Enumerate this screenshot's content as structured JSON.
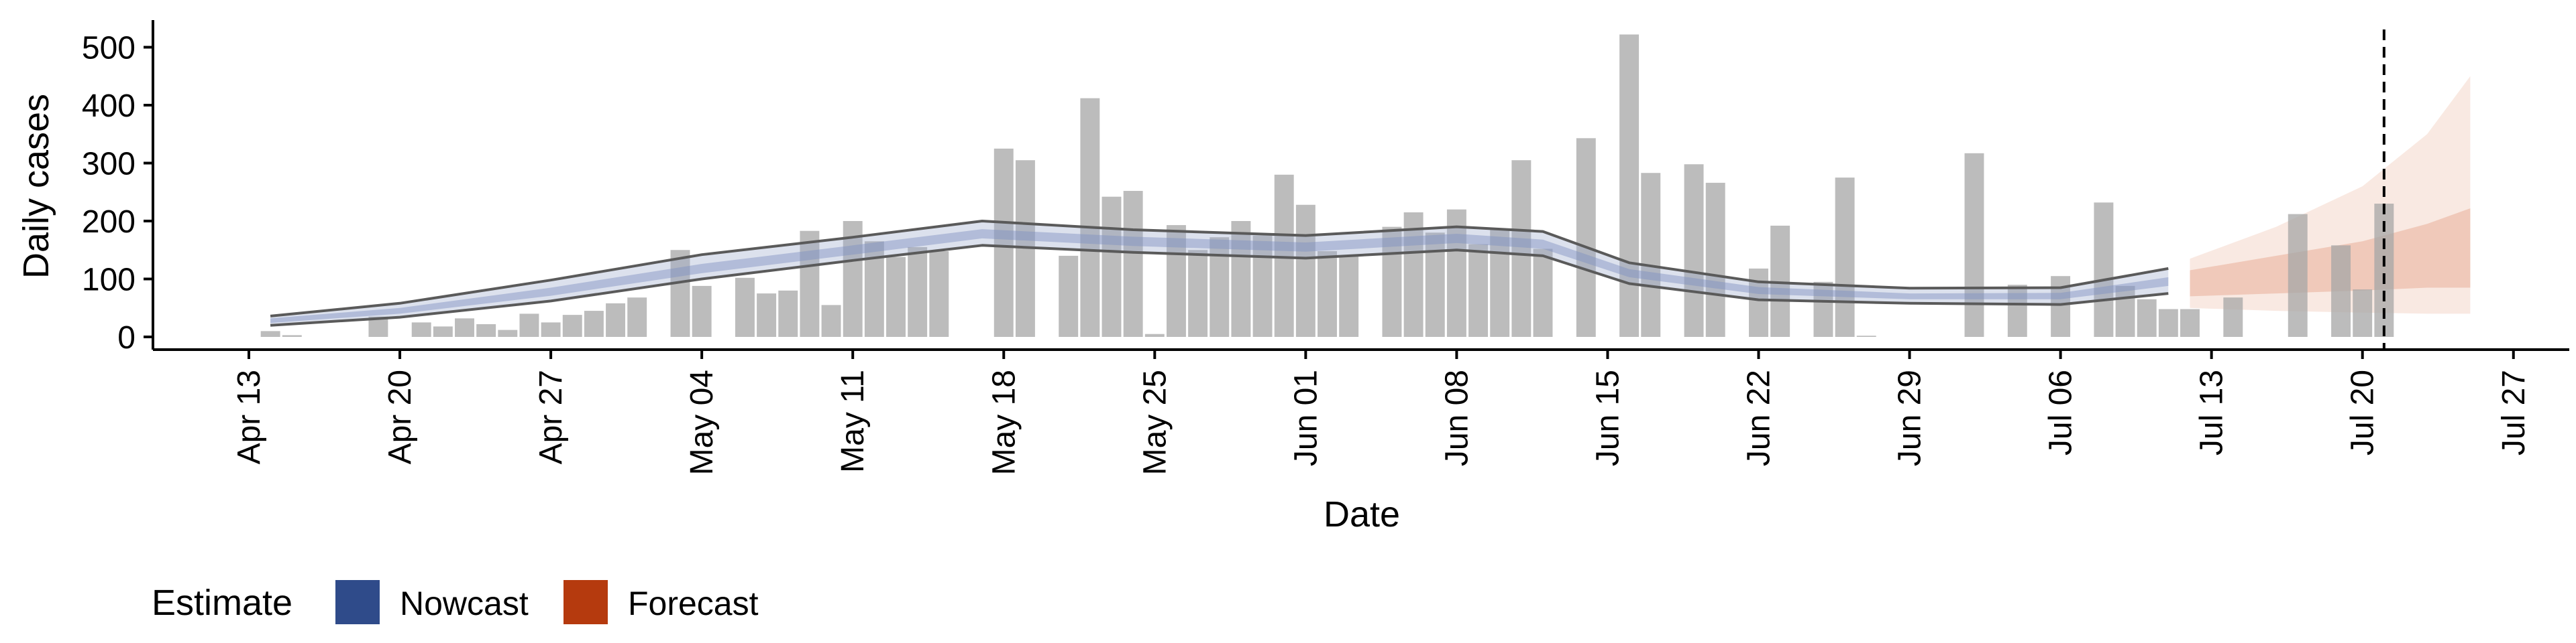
{
  "chart_data": {
    "type": "bar",
    "xlabel": "Date",
    "ylabel": "Daily cases",
    "ylim": [
      0,
      520
    ],
    "y_ticks": [
      0,
      100,
      200,
      300,
      400,
      500
    ],
    "x_range": [
      "2020-04-09",
      "2020-07-29"
    ],
    "x_ticks": [
      {
        "date": "2020-04-13",
        "label": "Apr 13"
      },
      {
        "date": "2020-04-20",
        "label": "Apr 20"
      },
      {
        "date": "2020-04-27",
        "label": "Apr 27"
      },
      {
        "date": "2020-05-04",
        "label": "May 04"
      },
      {
        "date": "2020-05-11",
        "label": "May 11"
      },
      {
        "date": "2020-05-18",
        "label": "May 18"
      },
      {
        "date": "2020-05-25",
        "label": "May 25"
      },
      {
        "date": "2020-06-01",
        "label": "Jun 01"
      },
      {
        "date": "2020-06-08",
        "label": "Jun 08"
      },
      {
        "date": "2020-06-15",
        "label": "Jun 15"
      },
      {
        "date": "2020-06-22",
        "label": "Jun 22"
      },
      {
        "date": "2020-06-29",
        "label": "Jun 29"
      },
      {
        "date": "2020-07-06",
        "label": "Jul 06"
      },
      {
        "date": "2020-07-13",
        "label": "Jul 13"
      },
      {
        "date": "2020-07-20",
        "label": "Jul 20"
      },
      {
        "date": "2020-07-27",
        "label": "Jul 27"
      }
    ],
    "reported_cases": [
      [
        "2020-04-14",
        10
      ],
      [
        "2020-04-15",
        3
      ],
      [
        "2020-04-19",
        35
      ],
      [
        "2020-04-21",
        25
      ],
      [
        "2020-04-22",
        18
      ],
      [
        "2020-04-23",
        32
      ],
      [
        "2020-04-24",
        22
      ],
      [
        "2020-04-25",
        12
      ],
      [
        "2020-04-26",
        40
      ],
      [
        "2020-04-27",
        25
      ],
      [
        "2020-04-28",
        38
      ],
      [
        "2020-04-29",
        45
      ],
      [
        "2020-04-30",
        58
      ],
      [
        "2020-05-01",
        68
      ],
      [
        "2020-05-03",
        150
      ],
      [
        "2020-05-04",
        88
      ],
      [
        "2020-05-06",
        102
      ],
      [
        "2020-05-07",
        75
      ],
      [
        "2020-05-08",
        80
      ],
      [
        "2020-05-09",
        183
      ],
      [
        "2020-05-10",
        55
      ],
      [
        "2020-05-11",
        200
      ],
      [
        "2020-05-12",
        165
      ],
      [
        "2020-05-13",
        138
      ],
      [
        "2020-05-14",
        155
      ],
      [
        "2020-05-15",
        148
      ],
      [
        "2020-05-18",
        325
      ],
      [
        "2020-05-19",
        305
      ],
      [
        "2020-05-21",
        140
      ],
      [
        "2020-05-22",
        412
      ],
      [
        "2020-05-23",
        242
      ],
      [
        "2020-05-24",
        252
      ],
      [
        "2020-05-25",
        5
      ],
      [
        "2020-05-26",
        193
      ],
      [
        "2020-05-27",
        150
      ],
      [
        "2020-05-28",
        172
      ],
      [
        "2020-05-29",
        200
      ],
      [
        "2020-05-30",
        175
      ],
      [
        "2020-05-31",
        280
      ],
      [
        "2020-06-01",
        228
      ],
      [
        "2020-06-02",
        148
      ],
      [
        "2020-06-03",
        140
      ],
      [
        "2020-06-05",
        190
      ],
      [
        "2020-06-06",
        215
      ],
      [
        "2020-06-07",
        180
      ],
      [
        "2020-06-08",
        220
      ],
      [
        "2020-06-09",
        160
      ],
      [
        "2020-06-10",
        185
      ],
      [
        "2020-06-11",
        305
      ],
      [
        "2020-06-12",
        152
      ],
      [
        "2020-06-14",
        343
      ],
      [
        "2020-06-16",
        522
      ],
      [
        "2020-06-17",
        283
      ],
      [
        "2020-06-19",
        298
      ],
      [
        "2020-06-20",
        266
      ],
      [
        "2020-06-22",
        118
      ],
      [
        "2020-06-23",
        192
      ],
      [
        "2020-06-25",
        95
      ],
      [
        "2020-06-26",
        275
      ],
      [
        "2020-06-27",
        2
      ],
      [
        "2020-07-02",
        317
      ],
      [
        "2020-07-04",
        90
      ],
      [
        "2020-07-06",
        105
      ],
      [
        "2020-07-08",
        232
      ],
      [
        "2020-07-09",
        88
      ],
      [
        "2020-07-10",
        65
      ],
      [
        "2020-07-11",
        48
      ],
      [
        "2020-07-12",
        48
      ],
      [
        "2020-07-14",
        68
      ],
      [
        "2020-07-17",
        212
      ],
      [
        "2020-07-19",
        158
      ],
      [
        "2020-07-20",
        82
      ],
      [
        "2020-07-21",
        230
      ]
    ],
    "dashed_vline_date": "2020-07-21",
    "series": [
      {
        "name": "Nowcast",
        "color": "#2f4b8a",
        "points": [
          {
            "date": "2020-04-14",
            "median": 28,
            "lower50": 24,
            "upper50": 32,
            "lower90": 20,
            "upper90": 36
          },
          {
            "date": "2020-04-20",
            "median": 45,
            "lower50": 40,
            "upper50": 50,
            "lower90": 34,
            "upper90": 58
          },
          {
            "date": "2020-04-27",
            "median": 78,
            "lower50": 71,
            "upper50": 85,
            "lower90": 62,
            "upper90": 98
          },
          {
            "date": "2020-05-04",
            "median": 118,
            "lower50": 110,
            "upper50": 126,
            "lower90": 100,
            "upper90": 142
          },
          {
            "date": "2020-05-11",
            "median": 150,
            "lower50": 142,
            "upper50": 158,
            "lower90": 132,
            "upper90": 172
          },
          {
            "date": "2020-05-17",
            "median": 178,
            "lower50": 170,
            "upper50": 186,
            "lower90": 158,
            "upper90": 200
          },
          {
            "date": "2020-05-24",
            "median": 165,
            "lower50": 157,
            "upper50": 173,
            "lower90": 146,
            "upper90": 185
          },
          {
            "date": "2020-06-01",
            "median": 155,
            "lower50": 147,
            "upper50": 163,
            "lower90": 136,
            "upper90": 175
          },
          {
            "date": "2020-06-08",
            "median": 170,
            "lower50": 162,
            "upper50": 178,
            "lower90": 150,
            "upper90": 190
          },
          {
            "date": "2020-06-12",
            "median": 160,
            "lower50": 152,
            "upper50": 168,
            "lower90": 140,
            "upper90": 182
          },
          {
            "date": "2020-06-16",
            "median": 110,
            "lower50": 103,
            "upper50": 117,
            "lower90": 92,
            "upper90": 128
          },
          {
            "date": "2020-06-22",
            "median": 80,
            "lower50": 74,
            "upper50": 86,
            "lower90": 64,
            "upper90": 95
          },
          {
            "date": "2020-06-29",
            "median": 70,
            "lower50": 65,
            "upper50": 75,
            "lower90": 58,
            "upper90": 84
          },
          {
            "date": "2020-07-06",
            "median": 70,
            "lower50": 65,
            "upper50": 76,
            "lower90": 56,
            "upper90": 85
          },
          {
            "date": "2020-07-11",
            "median": 95,
            "lower50": 88,
            "upper50": 103,
            "lower90": 75,
            "upper90": 118
          }
        ]
      },
      {
        "name": "Forecast",
        "color": "#b53a0e",
        "points": [
          {
            "date": "2020-07-12",
            "median": 95,
            "lower50": 70,
            "upper50": 115,
            "lower90": 50,
            "upper90": 135
          },
          {
            "date": "2020-07-16",
            "median": 110,
            "lower50": 75,
            "upper50": 140,
            "lower90": 45,
            "upper90": 190
          },
          {
            "date": "2020-07-20",
            "median": 125,
            "lower50": 80,
            "upper50": 165,
            "lower90": 42,
            "upper90": 260
          },
          {
            "date": "2020-07-23",
            "median": 145,
            "lower50": 85,
            "upper50": 195,
            "lower90": 40,
            "upper90": 350
          },
          {
            "date": "2020-07-25",
            "median": 150,
            "lower50": 85,
            "upper50": 222,
            "lower90": 40,
            "upper90": 450
          }
        ]
      }
    ],
    "legend": {
      "title": "Estimate",
      "position": "bottom-left",
      "items": [
        {
          "label": "Nowcast",
          "color": "#2f4b8a"
        },
        {
          "label": "Forecast",
          "color": "#b53a0e"
        }
      ]
    }
  }
}
